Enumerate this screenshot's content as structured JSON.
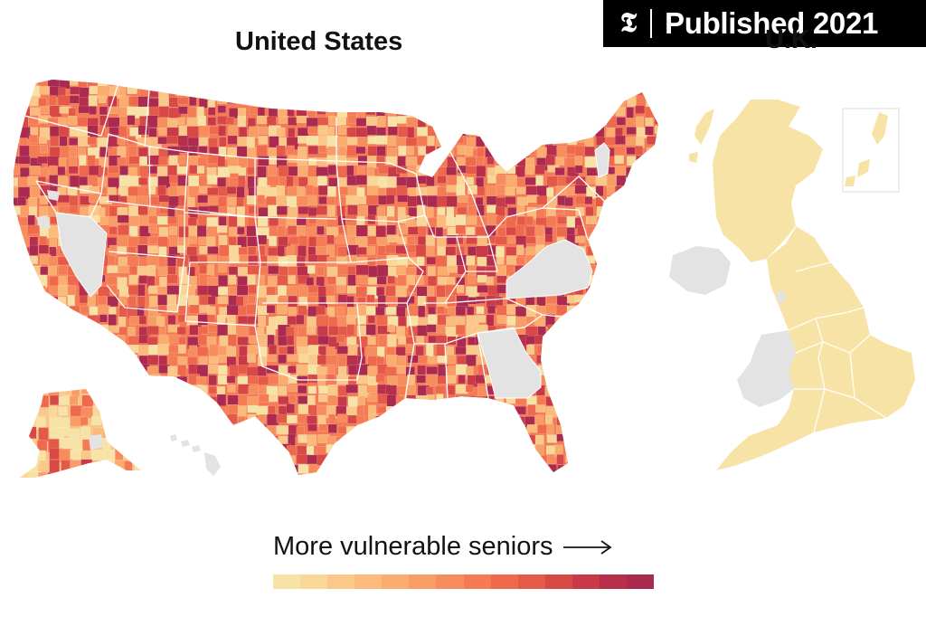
{
  "badge": {
    "logo": "𝕿",
    "text": "Published 2021"
  },
  "titles": {
    "us": "United States",
    "uk": "U.K."
  },
  "legend": {
    "label": "More vulnerable seniors",
    "arrow": "arrow-right-icon",
    "colors": [
      "#f8e3a6",
      "#f9d798",
      "#fac989",
      "#fbbb7c",
      "#fbad70",
      "#f99d66",
      "#f78d5d",
      "#f47b54",
      "#ef6a4d",
      "#e55948",
      "#d84946",
      "#c93a48",
      "#b82f4c",
      "#ab2a50"
    ]
  },
  "colors": {
    "no_data": "#e3e3e3",
    "uk_fill": "#f8e3a6",
    "border": "#ffffff"
  },
  "regions": {
    "us_states_no_data": [
      "Nevada",
      "Virginia",
      "West Virginia",
      "Georgia",
      "Vermont"
    ],
    "uk_no_data": [
      "Northern Ireland",
      "Wales"
    ]
  }
}
